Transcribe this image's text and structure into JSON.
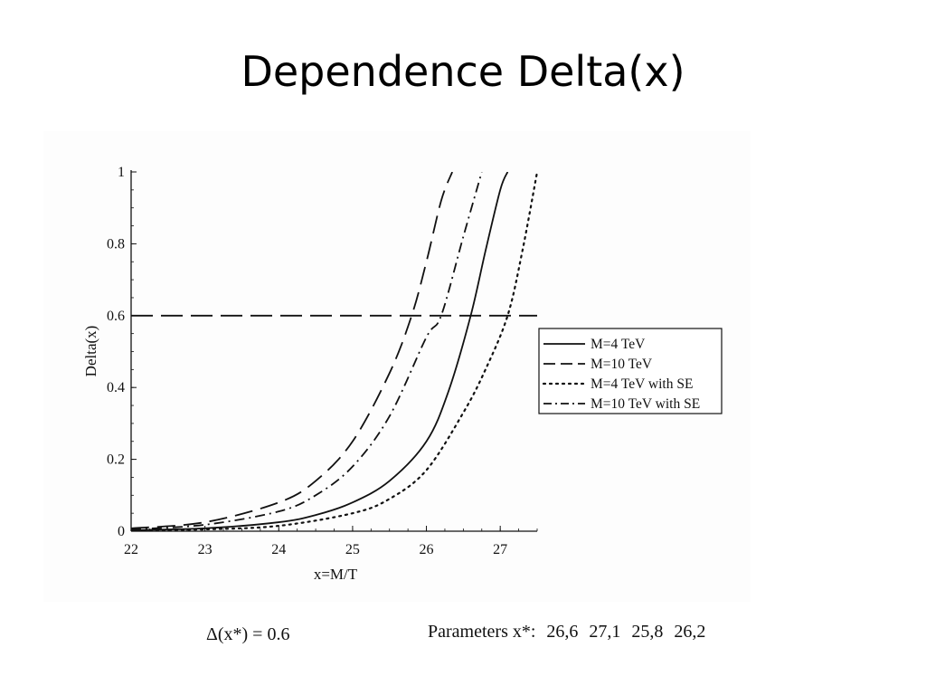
{
  "slide": {
    "title": "Dependence Delta(x)"
  },
  "chart_data": {
    "type": "line",
    "xlabel": "x=M/T",
    "ylabel": "Delta(x)",
    "xlim": [
      22,
      27.5
    ],
    "ylim": [
      0,
      1
    ],
    "x_ticks": [
      "22",
      "23",
      "24",
      "25",
      "26",
      "27"
    ],
    "y_ticks": [
      "0",
      "0.2",
      "0.4",
      "0.6",
      "0.8",
      "1"
    ],
    "grid": false,
    "legend_position": "right",
    "series": [
      {
        "name": "M=4 TeV",
        "style": "solid",
        "x": [
          22,
          23,
          24,
          24.5,
          25,
          25.5,
          26,
          26.3,
          26.6,
          26.8,
          27.0,
          27.1
        ],
        "y": [
          0.003,
          0.008,
          0.025,
          0.045,
          0.08,
          0.14,
          0.25,
          0.39,
          0.6,
          0.78,
          0.95,
          1.0
        ]
      },
      {
        "name": "M=10 TeV",
        "style": "dashed",
        "x": [
          22,
          23,
          24,
          24.5,
          25,
          25.5,
          25.8,
          26.0,
          26.2,
          26.35
        ],
        "y": [
          0.008,
          0.025,
          0.08,
          0.14,
          0.25,
          0.44,
          0.6,
          0.75,
          0.92,
          1.0
        ]
      },
      {
        "name": "M=4 TeV with SE",
        "style": "dotted",
        "x": [
          22,
          23,
          24,
          25,
          25.5,
          26,
          26.5,
          26.8,
          27.1,
          27.3,
          27.5
        ],
        "y": [
          0.002,
          0.005,
          0.015,
          0.05,
          0.09,
          0.17,
          0.33,
          0.45,
          0.6,
          0.78,
          1.0
        ]
      },
      {
        "name": "M=10 TeV with SE",
        "style": "dashdot",
        "x": [
          22,
          23,
          24,
          24.5,
          25,
          25.5,
          26,
          26.2,
          26.5,
          26.75
        ],
        "y": [
          0.005,
          0.018,
          0.055,
          0.1,
          0.18,
          0.32,
          0.54,
          0.6,
          0.82,
          1.0
        ]
      },
      {
        "name": "",
        "style": "longdash",
        "x": [
          22,
          27.5
        ],
        "y": [
          0.6,
          0.6
        ]
      }
    ]
  },
  "annotations": {
    "formula": "Δ(x*) = 0.6",
    "parameters_label": "Parameters x*:",
    "parameters_values": [
      "26,6",
      "27,1",
      "25,8",
      "26,2"
    ]
  },
  "colors": {
    "line": "#111111",
    "background": "#ffffff"
  }
}
